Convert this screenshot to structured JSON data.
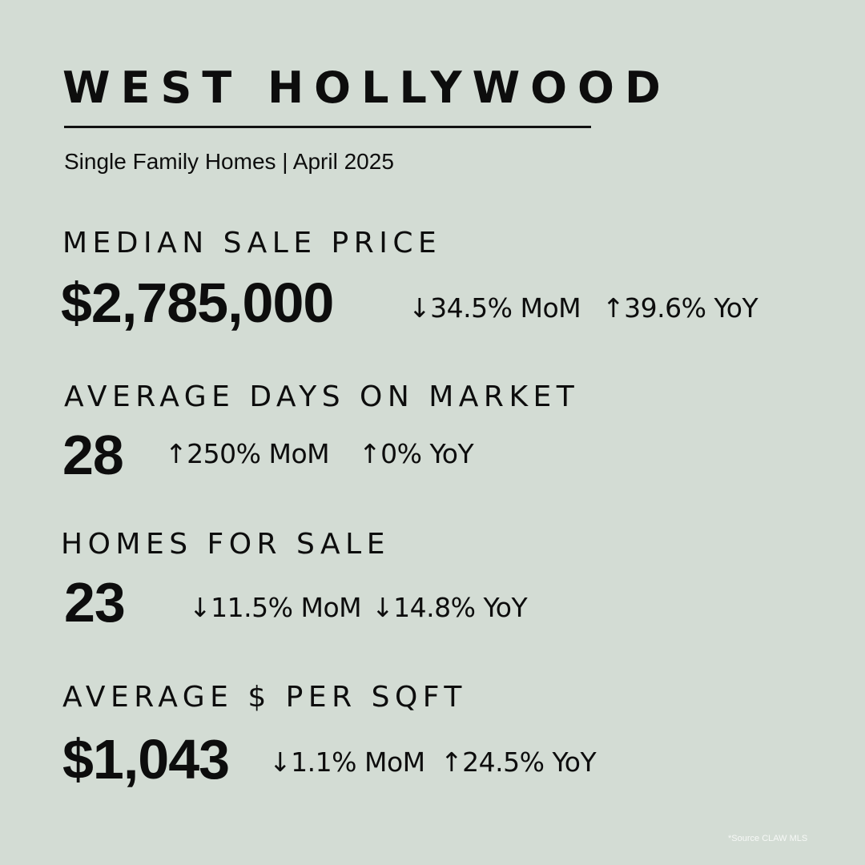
{
  "header": {
    "title": "WEST HOLLYWOOD",
    "subtitle": "Single Family Homes | April 2025"
  },
  "metrics": [
    {
      "label": "MEDIAN SALE PRICE",
      "value": "$2,785,000",
      "mom": "↓34.5% MoM",
      "yoy": "↑39.6% YoY"
    },
    {
      "label": "AVERAGE DAYS ON MARKET",
      "value": "28",
      "mom": "↑250% MoM",
      "yoy": "↑0% YoY"
    },
    {
      "label": "HOMES FOR SALE",
      "value": "23",
      "mom": "↓11.5% MoM",
      "yoy": "↓14.8% YoY"
    },
    {
      "label": "AVERAGE $ PER SQFT",
      "value": "$1,043",
      "mom": "↓1.1% MoM",
      "yoy": "↑24.5% YoY"
    }
  ],
  "footer": {
    "source": "*Source CLAW MLS"
  },
  "colors": {
    "background": "#d3dcd4",
    "text": "#0d0d0d",
    "source_text": "#f6f8f6"
  }
}
